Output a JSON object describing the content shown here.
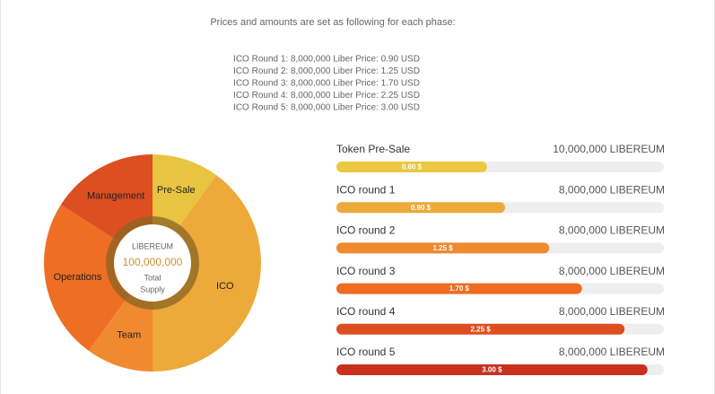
{
  "intro": "Prices and amounts are set as following for each phase:",
  "rounds": [
    "ICO Round 1: 8,000,000 Liber Price: 0.90 USD",
    "ICO Round 2: 8,000,000 Liber Price: 1.25 USD",
    "ICO Round 3: 8,000,000 Liber Price: 1.70 USD",
    "ICO Round 4: 8,000,000 Liber Price: 2.25 USD",
    "ICO Round 5: 8,000,000 Liber Price: 3.00 USD"
  ],
  "chart_data": {
    "type": "pie",
    "categories": [
      "Pre-Sale",
      "ICO",
      "Team",
      "Operations",
      "Management"
    ],
    "values": [
      10,
      40,
      10,
      24,
      16
    ],
    "colors": [
      "#e9c440",
      "#eda93a",
      "#f08a30",
      "#ee6e24",
      "#db4f20"
    ],
    "center": [
      "LIBEREUM",
      "100,000,000",
      "Total",
      "Supply"
    ]
  },
  "bars": [
    {
      "label": "Token Pre-Sale",
      "amount": "10,000,000 LIBEREUM",
      "price": "0.60 $",
      "fill": 46,
      "color": "#ecc840"
    },
    {
      "label": "ICO round 1",
      "amount": "8,000,000 LIBEREUM",
      "price": "0.90 $",
      "fill": 51.5,
      "color": "#eda93a"
    },
    {
      "label": "ICO round 2",
      "amount": "8,000,000 LIBEREUM",
      "price": "1.25 $",
      "fill": 65,
      "color": "#ee8a30"
    },
    {
      "label": "ICO round 3",
      "amount": "8,000,000 LIBEREUM",
      "price": "1.70 $",
      "fill": 75,
      "color": "#ef6c22"
    },
    {
      "label": "ICO round 4",
      "amount": "8,000,000 LIBEREUM",
      "price": "2.25 $",
      "fill": 88,
      "color": "#de4e20"
    },
    {
      "label": "ICO round 5",
      "amount": "8,000,000 LIBEREUM",
      "price": "3.00 $",
      "fill": 95,
      "color": "#c9301f"
    }
  ]
}
